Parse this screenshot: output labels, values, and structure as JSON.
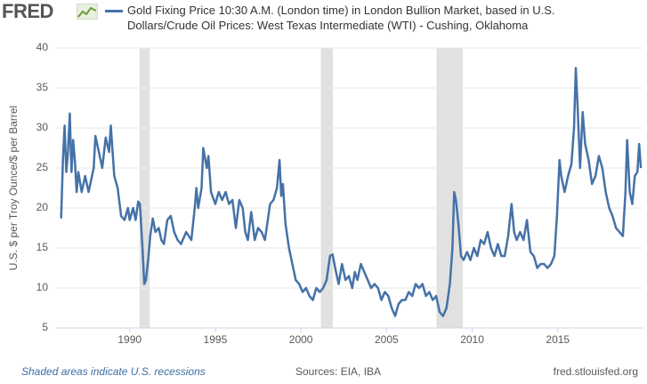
{
  "logo": "FRED",
  "chart_data": {
    "type": "line",
    "series": [
      {
        "name": "Gold Fixing Price 10:30 A.M. (London time) in London Bullion Market, based in U.S. Dollars/Crude Oil Prices: West Texas Intermediate (WTI) - Cushing, Oklahoma",
        "color": "#4572a7",
        "values": [
          18.7,
          26,
          30.3,
          24.5,
          27,
          31.8,
          24.5,
          28.5,
          26,
          22,
          24.5,
          22,
          24,
          22,
          25,
          29,
          27,
          25,
          28.8,
          27,
          30.3,
          24,
          22.5,
          19,
          18.5,
          20,
          18.5,
          20,
          18.5,
          20.8,
          20.5,
          15,
          10.5,
          11,
          14,
          16.5,
          18.7,
          17,
          17.5,
          16,
          15.5,
          18.5,
          19,
          17,
          16,
          15.5,
          17,
          16,
          20,
          22.5,
          20,
          22.5,
          27.5,
          25,
          26.5,
          22,
          20.5,
          22,
          21,
          22,
          20.5,
          21,
          17.5,
          21,
          20,
          17,
          16,
          19.5,
          16,
          17.5,
          17,
          16,
          17.5,
          20.5,
          21,
          22.5,
          26,
          21.5,
          23,
          18,
          15,
          13,
          11,
          10.5,
          9.5,
          10,
          9,
          8.5,
          10,
          9.5,
          10,
          11,
          14,
          14.2,
          12.5,
          10.5,
          13,
          11,
          11.5,
          10,
          12,
          11,
          13,
          12,
          11,
          10,
          10.5,
          10,
          8.5,
          9.5,
          9,
          7.5,
          6.5,
          8,
          8.5,
          8.5,
          9.5,
          9,
          10.5,
          10,
          10.5,
          9,
          9.5,
          8.5,
          9,
          7,
          6.5,
          7.5,
          10.5,
          15,
          22,
          21,
          18,
          14,
          13.5,
          14.5,
          13.5,
          15,
          14,
          16,
          15.5,
          17,
          15,
          14,
          15.5,
          14,
          14,
          16.5,
          20.5,
          17,
          16,
          17,
          16,
          18.5,
          14.5,
          14,
          12.5,
          13,
          13,
          12.5,
          13,
          14,
          19,
          26,
          24,
          22,
          24,
          25.5,
          30,
          37.5,
          33,
          25,
          32,
          28,
          26,
          23,
          24,
          26.5,
          25,
          22,
          20,
          19,
          17.5,
          17,
          16.5,
          22,
          28.5,
          22,
          20.5,
          24,
          24.5,
          28,
          25
        ]
      }
    ],
    "x": [
      1986.0,
      1986.1,
      1986.2,
      1986.3,
      1986.4,
      1986.5,
      1986.6,
      1986.7,
      1986.8,
      1986.9,
      1987.0,
      1987.2,
      1987.4,
      1987.6,
      1987.9,
      1988.0,
      1988.2,
      1988.4,
      1988.6,
      1988.8,
      1988.9,
      1989.1,
      1989.3,
      1989.5,
      1989.7,
      1989.9,
      1990.0,
      1990.2,
      1990.35,
      1990.5,
      1990.6,
      1990.75,
      1990.85,
      1990.95,
      1991.1,
      1991.2,
      1991.35,
      1991.5,
      1991.7,
      1991.85,
      1992.0,
      1992.2,
      1992.4,
      1992.6,
      1992.8,
      1993.0,
      1993.3,
      1993.6,
      1993.8,
      1993.9,
      1994.0,
      1994.2,
      1994.3,
      1994.5,
      1994.6,
      1994.75,
      1995.0,
      1995.2,
      1995.4,
      1995.6,
      1995.8,
      1996.0,
      1996.2,
      1996.4,
      1996.6,
      1996.75,
      1996.9,
      1997.1,
      1997.3,
      1997.5,
      1997.7,
      1997.9,
      1998.0,
      1998.2,
      1998.4,
      1998.6,
      1998.75,
      1998.85,
      1998.95,
      1999.1,
      1999.3,
      1999.5,
      1999.7,
      1999.9,
      2000.1,
      2000.3,
      2000.5,
      2000.7,
      2000.9,
      2001.1,
      2001.3,
      2001.5,
      2001.7,
      2001.85,
      2002.0,
      2002.2,
      2002.4,
      2002.6,
      2002.8,
      2003.0,
      2003.15,
      2003.3,
      2003.5,
      2003.7,
      2003.9,
      2004.1,
      2004.3,
      2004.5,
      2004.7,
      2004.9,
      2005.1,
      2005.3,
      2005.5,
      2005.7,
      2005.9,
      2006.1,
      2006.3,
      2006.5,
      2006.7,
      2006.9,
      2007.1,
      2007.3,
      2007.5,
      2007.7,
      2007.9,
      2008.1,
      2008.3,
      2008.5,
      2008.7,
      2008.85,
      2008.95,
      2009.05,
      2009.2,
      2009.35,
      2009.5,
      2009.7,
      2009.9,
      2010.1,
      2010.3,
      2010.5,
      2010.7,
      2010.9,
      2011.1,
      2011.3,
      2011.5,
      2011.7,
      2011.9,
      2012.1,
      2012.3,
      2012.45,
      2012.6,
      2012.8,
      2013.0,
      2013.2,
      2013.4,
      2013.6,
      2013.8,
      2014.0,
      2014.2,
      2014.4,
      2014.6,
      2014.8,
      2014.95,
      2015.1,
      2015.2,
      2015.4,
      2015.6,
      2015.8,
      2015.95,
      2016.05,
      2016.15,
      2016.3,
      2016.45,
      2016.6,
      2016.8,
      2017.0,
      2017.2,
      2017.4,
      2017.6,
      2017.8,
      2018.0,
      2018.2,
      2018.4,
      2018.6,
      2018.8,
      2018.95,
      2019.05,
      2019.2,
      2019.35,
      2019.5,
      2019.65,
      2019.75,
      2019.85
    ],
    "recessions": [
      [
        1990.58,
        1991.17
      ],
      [
        2001.17,
        2001.87
      ],
      [
        2007.92,
        2009.46
      ]
    ],
    "xlim": [
      1985.65,
      2019.95
    ],
    "xticks": [
      1990,
      1995,
      2000,
      2005,
      2010,
      2015
    ],
    "ylim": [
      5,
      40
    ],
    "yticks": [
      5,
      10,
      15,
      20,
      25,
      30,
      35,
      40
    ],
    "grid": true,
    "ylabel": "U.S. $ per Troy Ounce/$ per Barrel",
    "footnote": "Shaded areas indicate U.S. recessions",
    "source": "Sources: EIA, IBA",
    "site": "fred.stlouisfed.org"
  }
}
